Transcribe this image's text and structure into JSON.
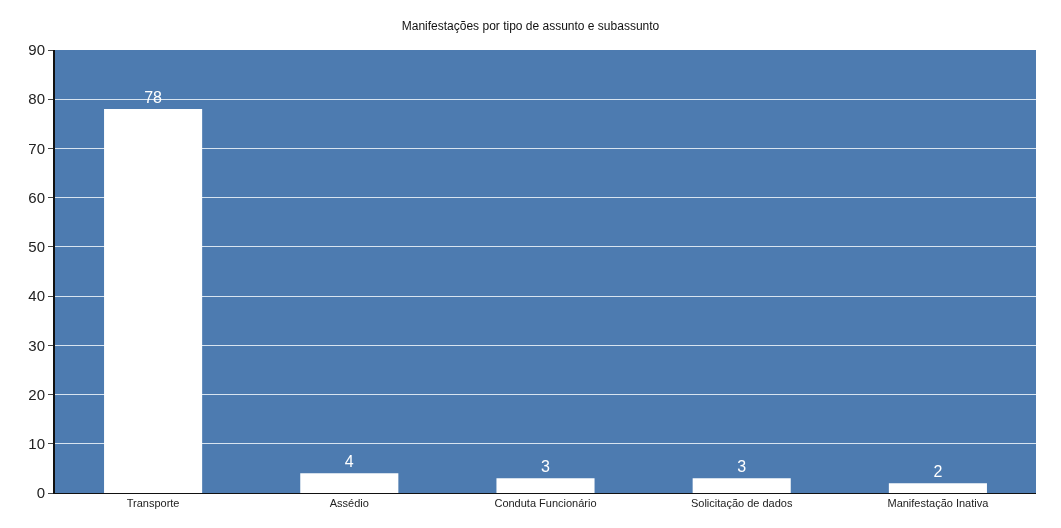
{
  "chart_data": {
    "type": "bar",
    "title": "Manifestações por tipo de assunto e subassunto",
    "categories": [
      "Transporte",
      "Assédio",
      "Conduta Funcionário",
      "Solicitação de dados",
      "Manifestação Inativa"
    ],
    "values": [
      78,
      4,
      3,
      3,
      2
    ],
    "color": "#ffffff",
    "data_labels": true,
    "ylim": [
      0,
      90
    ],
    "yticks": [
      0,
      10,
      20,
      30,
      40,
      50,
      60,
      70,
      80,
      90
    ],
    "grid": "y"
  }
}
